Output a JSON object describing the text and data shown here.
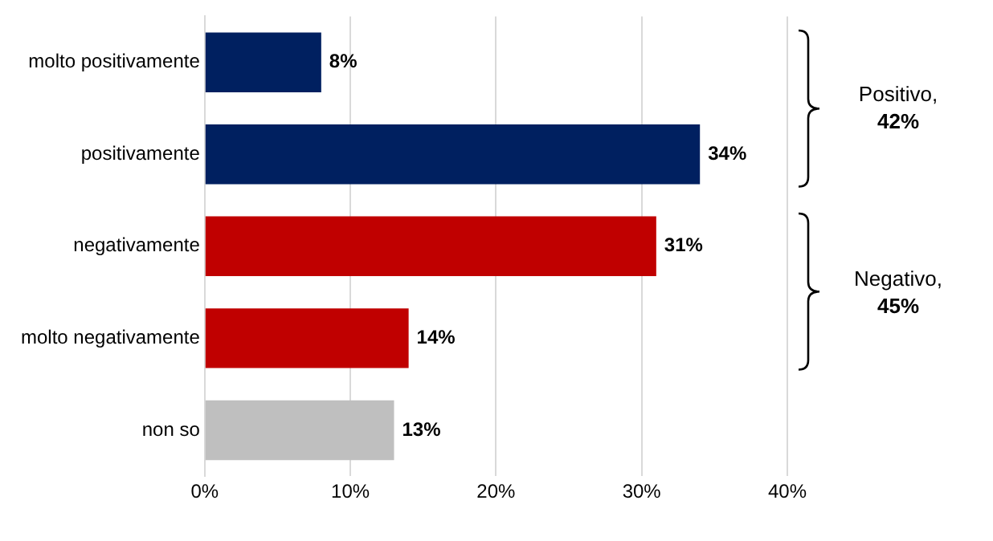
{
  "chart_data": {
    "type": "bar",
    "orientation": "horizontal",
    "categories": [
      "molto positivamente",
      "positivamente",
      "negativamente",
      "molto negativamente",
      "non so"
    ],
    "values": [
      8,
      34,
      31,
      14,
      13
    ],
    "colors": [
      "#002060",
      "#002060",
      "#c00000",
      "#c00000",
      "#bfbfbf"
    ],
    "value_labels": [
      "8%",
      "34%",
      "31%",
      "14%",
      "13%"
    ],
    "xlim": [
      0,
      40
    ],
    "xticks": [
      {
        "value": 0,
        "label": "0%"
      },
      {
        "value": 10,
        "label": "10%"
      },
      {
        "value": 20,
        "label": "20%"
      },
      {
        "value": 30,
        "label": "30%"
      },
      {
        "value": 40,
        "label": "40%"
      }
    ],
    "grid": "x",
    "annotations": [
      "Positivo, 42%",
      "Negativo, 45%"
    ]
  }
}
